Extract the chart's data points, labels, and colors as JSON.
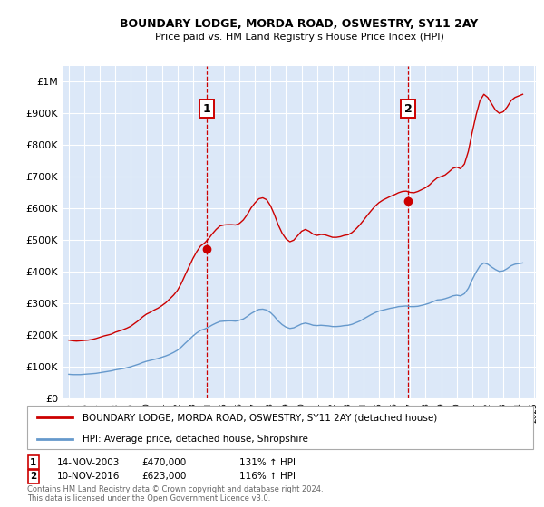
{
  "title1": "BOUNDARY LODGE, MORDA ROAD, OSWESTRY, SY11 2AY",
  "title2": "Price paid vs. HM Land Registry's House Price Index (HPI)",
  "background_color": "#eef3fb",
  "plot_bg": "#dce8f8",
  "red_color": "#cc0000",
  "blue_color": "#6699cc",
  "sale1_date": "14-NOV-2003",
  "sale1_price": 470000,
  "sale1_label": "131% ↑ HPI",
  "sale2_date": "10-NOV-2016",
  "sale2_price": 623000,
  "sale2_label": "116% ↑ HPI",
  "legend_line1": "BOUNDARY LODGE, MORDA ROAD, OSWESTRY, SY11 2AY (detached house)",
  "legend_line2": "HPI: Average price, detached house, Shropshire",
  "footnote1": "Contains HM Land Registry data © Crown copyright and database right 2024.",
  "footnote2": "This data is licensed under the Open Government Licence v3.0.",
  "ylim_max": 1050000,
  "ylim_min": 0,
  "hpi_red_years": [
    1995.0,
    1995.25,
    1995.5,
    1995.75,
    1996.0,
    1996.25,
    1996.5,
    1996.75,
    1997.0,
    1997.25,
    1997.5,
    1997.75,
    1998.0,
    1998.25,
    1998.5,
    1998.75,
    1999.0,
    1999.25,
    1999.5,
    1999.75,
    2000.0,
    2000.25,
    2000.5,
    2000.75,
    2001.0,
    2001.25,
    2001.5,
    2001.75,
    2002.0,
    2002.25,
    2002.5,
    2002.75,
    2003.0,
    2003.25,
    2003.5,
    2003.75,
    2004.0,
    2004.25,
    2004.5,
    2004.75,
    2005.0,
    2005.25,
    2005.5,
    2005.75,
    2006.0,
    2006.25,
    2006.5,
    2006.75,
    2007.0,
    2007.25,
    2007.5,
    2007.75,
    2008.0,
    2008.25,
    2008.5,
    2008.75,
    2009.0,
    2009.25,
    2009.5,
    2009.75,
    2010.0,
    2010.25,
    2010.5,
    2010.75,
    2011.0,
    2011.25,
    2011.5,
    2011.75,
    2012.0,
    2012.25,
    2012.5,
    2012.75,
    2013.0,
    2013.25,
    2013.5,
    2013.75,
    2014.0,
    2014.25,
    2014.5,
    2014.75,
    2015.0,
    2015.25,
    2015.5,
    2015.75,
    2016.0,
    2016.25,
    2016.5,
    2016.75,
    2017.0,
    2017.25,
    2017.5,
    2017.75,
    2018.0,
    2018.25,
    2018.5,
    2018.75,
    2019.0,
    2019.25,
    2019.5,
    2019.75,
    2020.0,
    2020.25,
    2020.5,
    2020.75,
    2021.0,
    2021.25,
    2021.5,
    2021.75,
    2022.0,
    2022.25,
    2022.5,
    2022.75,
    2023.0,
    2023.25,
    2023.5,
    2023.75,
    2024.0,
    2024.25
  ],
  "hpi_red_values": [
    183000,
    181000,
    180000,
    181000,
    182000,
    183000,
    185000,
    188000,
    192000,
    196000,
    199000,
    202000,
    208000,
    212000,
    216000,
    221000,
    227000,
    236000,
    245000,
    256000,
    265000,
    271000,
    278000,
    284000,
    292000,
    301000,
    313000,
    325000,
    340000,
    362000,
    389000,
    415000,
    441000,
    463000,
    481000,
    490000,
    503000,
    519000,
    533000,
    544000,
    547000,
    548000,
    548000,
    547000,
    552000,
    563000,
    580000,
    601000,
    617000,
    630000,
    633000,
    627000,
    608000,
    580000,
    547000,
    521000,
    503000,
    494000,
    499000,
    513000,
    527000,
    533000,
    527000,
    518000,
    514000,
    517000,
    516000,
    512000,
    508000,
    508000,
    510000,
    514000,
    516000,
    523000,
    534000,
    547000,
    562000,
    578000,
    593000,
    607000,
    618000,
    626000,
    632000,
    638000,
    643000,
    649000,
    653000,
    654000,
    650000,
    649000,
    653000,
    659000,
    665000,
    674000,
    686000,
    696000,
    700000,
    705000,
    715000,
    726000,
    730000,
    725000,
    740000,
    780000,
    840000,
    895000,
    940000,
    960000,
    950000,
    930000,
    910000,
    900000,
    905000,
    920000,
    940000,
    950000,
    955000,
    960000
  ],
  "hpi_blue_years": [
    1995.0,
    1995.25,
    1995.5,
    1995.75,
    1996.0,
    1996.25,
    1996.5,
    1996.75,
    1997.0,
    1997.25,
    1997.5,
    1997.75,
    1998.0,
    1998.25,
    1998.5,
    1998.75,
    1999.0,
    1999.25,
    1999.5,
    1999.75,
    2000.0,
    2000.25,
    2000.5,
    2000.75,
    2001.0,
    2001.25,
    2001.5,
    2001.75,
    2002.0,
    2002.25,
    2002.5,
    2002.75,
    2003.0,
    2003.25,
    2003.5,
    2003.75,
    2004.0,
    2004.25,
    2004.5,
    2004.75,
    2005.0,
    2005.25,
    2005.5,
    2005.75,
    2006.0,
    2006.25,
    2006.5,
    2006.75,
    2007.0,
    2007.25,
    2007.5,
    2007.75,
    2008.0,
    2008.25,
    2008.5,
    2008.75,
    2009.0,
    2009.25,
    2009.5,
    2009.75,
    2010.0,
    2010.25,
    2010.5,
    2010.75,
    2011.0,
    2011.25,
    2011.5,
    2011.75,
    2012.0,
    2012.25,
    2012.5,
    2012.75,
    2013.0,
    2013.25,
    2013.5,
    2013.75,
    2014.0,
    2014.25,
    2014.5,
    2014.75,
    2015.0,
    2015.25,
    2015.5,
    2015.75,
    2016.0,
    2016.25,
    2016.5,
    2016.75,
    2017.0,
    2017.25,
    2017.5,
    2017.75,
    2018.0,
    2018.25,
    2018.5,
    2018.75,
    2019.0,
    2019.25,
    2019.5,
    2019.75,
    2020.0,
    2020.25,
    2020.5,
    2020.75,
    2021.0,
    2021.25,
    2021.5,
    2021.75,
    2022.0,
    2022.25,
    2022.5,
    2022.75,
    2023.0,
    2023.25,
    2023.5,
    2023.75,
    2024.0,
    2024.25
  ],
  "hpi_blue_values": [
    75000,
    74000,
    74000,
    74000,
    75000,
    76000,
    77000,
    78000,
    80000,
    82000,
    84000,
    86000,
    89000,
    91000,
    93000,
    96000,
    99000,
    103000,
    107000,
    112000,
    116000,
    119000,
    122000,
    125000,
    129000,
    133000,
    138000,
    144000,
    151000,
    161000,
    173000,
    184000,
    196000,
    206000,
    214000,
    218000,
    224000,
    231000,
    237000,
    242000,
    243000,
    244000,
    244000,
    243000,
    246000,
    250000,
    258000,
    267000,
    274000,
    280000,
    281000,
    278000,
    270000,
    258000,
    243000,
    232000,
    224000,
    220000,
    222000,
    228000,
    234000,
    237000,
    234000,
    230000,
    229000,
    230000,
    229000,
    228000,
    226000,
    226000,
    227000,
    229000,
    230000,
    233000,
    238000,
    243000,
    250000,
    257000,
    264000,
    270000,
    275000,
    278000,
    281000,
    284000,
    286000,
    289000,
    290000,
    291000,
    289000,
    289000,
    290000,
    293000,
    296000,
    300000,
    305000,
    310000,
    311000,
    314000,
    318000,
    323000,
    325000,
    323000,
    330000,
    347000,
    374000,
    398000,
    418000,
    427000,
    423000,
    414000,
    406000,
    400000,
    402000,
    409000,
    418000,
    423000,
    425000,
    427000
  ]
}
